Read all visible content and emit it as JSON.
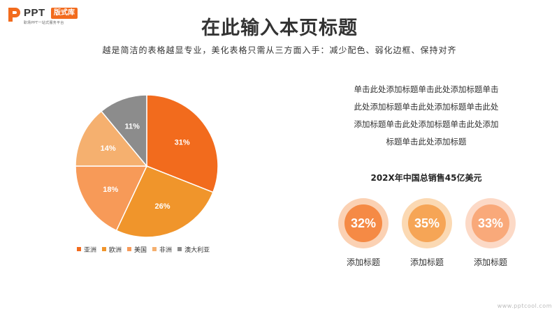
{
  "logo": {
    "brand": "PPT",
    "badge": "版式库",
    "tagline": "职场PPT一站式服务平台"
  },
  "header": {
    "title": "在此输入本页标题",
    "subtitle": "越是简洁的表格越显专业，美化表格只需从三方面入手：减少配色、弱化边框、保持对齐"
  },
  "chart_data": {
    "type": "pie",
    "categories": [
      "亚洲",
      "欧洲",
      "美国",
      "非洲",
      "澳大利亚"
    ],
    "values": [
      31,
      26,
      18,
      14,
      11
    ],
    "data_labels": [
      "31%",
      "26%",
      "18%",
      "14%",
      "11%"
    ],
    "colors": [
      "#f26b1d",
      "#f0952b",
      "#f79a58",
      "#f5b06f",
      "#8c8c8c"
    ],
    "legend_position": "bottom"
  },
  "description": {
    "lines": [
      "单击此处添加标题单击此处添加标题单击",
      "此处添加标题单击此处添加标题单击此处",
      "添加标题单击此处添加标题单击此处添加",
      "标题单击此处添加标题"
    ]
  },
  "summary": {
    "text": "202X年中国总销售45亿美元"
  },
  "kpis": [
    {
      "value": "32%",
      "label": "添加标题",
      "ring": "#fbd1b3",
      "fill": "#f58a45"
    },
    {
      "value": "35%",
      "label": "添加标题",
      "ring": "#fbd9b3",
      "fill": "#f6a556"
    },
    {
      "value": "33%",
      "label": "添加标题",
      "ring": "#fcd9c6",
      "fill": "#f9a97a"
    }
  ],
  "watermark": "www.pptcool.com"
}
